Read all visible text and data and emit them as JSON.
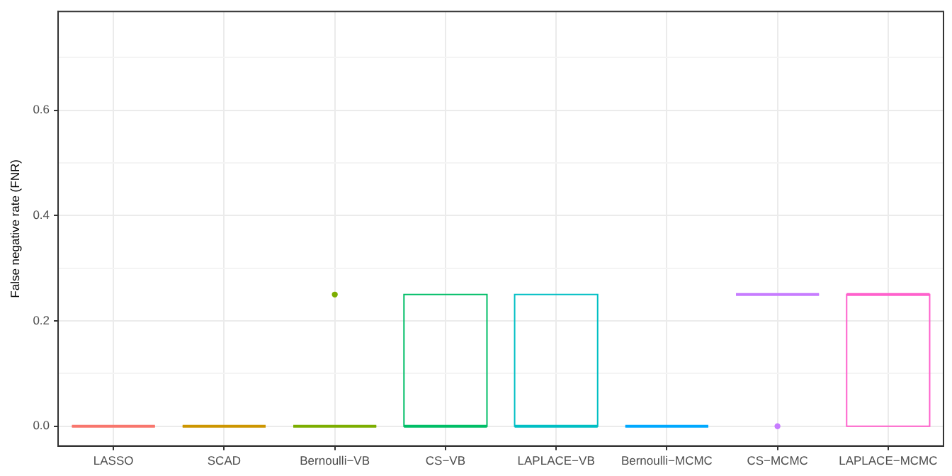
{
  "chart_data": {
    "type": "box",
    "ylabel": "False negative rate (FNR)",
    "categories": [
      "LASSO",
      "SCAD",
      "Bernoulli−VB",
      "CS−VB",
      "LAPLACE−VB",
      "Bernoulli−MCMC",
      "CS−MCMC",
      "LAPLACE−MCMC"
    ],
    "colors": [
      "#f8766d",
      "#cd9600",
      "#7cae00",
      "#00be67",
      "#00bfc4",
      "#00a9ff",
      "#c77cff",
      "#ff61cc"
    ],
    "boxes": [
      {
        "low": 0,
        "q1": 0,
        "median": 0,
        "q3": 0,
        "high": 0
      },
      {
        "low": 0,
        "q1": 0,
        "median": 0,
        "q3": 0,
        "high": 0
      },
      {
        "low": 0,
        "q1": 0,
        "median": 0,
        "q3": 0,
        "high": 0,
        "outliers": [
          0.25
        ]
      },
      {
        "low": 0,
        "q1": 0,
        "median": 0,
        "q3": 0.25,
        "high": 0.25
      },
      {
        "low": 0,
        "q1": 0,
        "median": 0,
        "q3": 0.25,
        "high": 0.25
      },
      {
        "low": 0,
        "q1": 0,
        "median": 0,
        "q3": 0,
        "high": 0
      },
      {
        "low": 0.25,
        "q1": 0.25,
        "median": 0.25,
        "q3": 0.25,
        "high": 0.25,
        "outliers": [
          0
        ]
      },
      {
        "low": 0,
        "q1": 0,
        "median": 0.25,
        "q3": 0.25,
        "high": 0.25
      }
    ],
    "ylim": [
      -0.0375,
      0.7875
    ],
    "yticks": [
      {
        "value": 0,
        "label": "0.0"
      },
      {
        "value": 0.1,
        "label": null
      },
      {
        "value": 0.2,
        "label": "0.2"
      },
      {
        "value": 0.3,
        "label": null
      },
      {
        "value": 0.4,
        "label": "0.4"
      },
      {
        "value": 0.5,
        "label": null
      },
      {
        "value": 0.6,
        "label": "0.6"
      },
      {
        "value": 0.7,
        "label": null
      }
    ],
    "grid": true
  }
}
